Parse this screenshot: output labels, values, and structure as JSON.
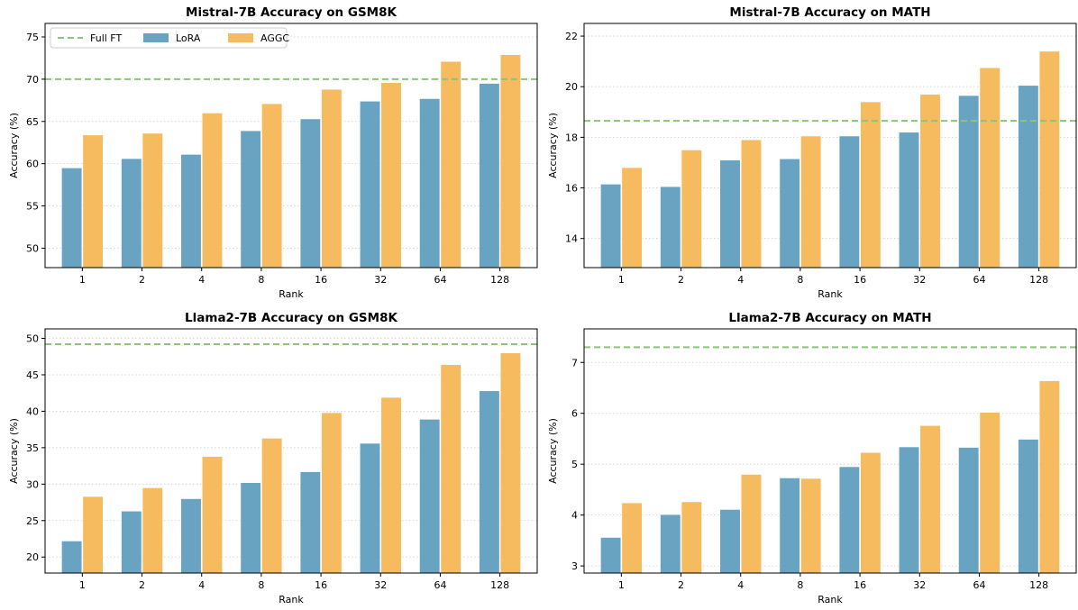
{
  "legend": {
    "items": [
      {
        "label": "Full FT",
        "kind": "dashed-line",
        "color": "#8fc27a"
      },
      {
        "label": "LoRA",
        "kind": "bar",
        "color": "#5b9bbd"
      },
      {
        "label": "AGGC",
        "kind": "bar",
        "color": "#f4b550"
      }
    ],
    "placement": "upper-left of first panel",
    "columns": 3
  },
  "colors": {
    "lora": "#5b9bbd",
    "aggc": "#f4b550",
    "full_ft": "#8fc27a",
    "grid": "#cccccc",
    "axes": "#000000"
  },
  "chart_data": [
    {
      "type": "bar",
      "title": "Mistral-7B Accuracy on GSM8K",
      "xlabel": "Rank",
      "ylabel": "Accuracy (%)",
      "categories": [
        "1",
        "2",
        "4",
        "8",
        "16",
        "32",
        "64",
        "128"
      ],
      "series": [
        {
          "name": "LoRA",
          "values": [
            59.5,
            60.6,
            61.1,
            63.9,
            65.3,
            67.4,
            67.7,
            69.5
          ]
        },
        {
          "name": "AGGC",
          "values": [
            63.4,
            63.6,
            66.0,
            67.1,
            68.8,
            69.6,
            72.1,
            72.9
          ]
        }
      ],
      "reference_lines": [
        {
          "name": "Full FT",
          "value": 70.0
        }
      ],
      "ylim": [
        47.7,
        76.6
      ],
      "yticks": [
        50,
        55,
        60,
        65,
        70,
        75
      ],
      "grid": "y, dotted",
      "show_legend": true
    },
    {
      "type": "bar",
      "title": "Mistral-7B Accuracy on MATH",
      "xlabel": "Rank",
      "ylabel": "Accuracy (%)",
      "categories": [
        "1",
        "2",
        "4",
        "8",
        "16",
        "32",
        "64",
        "128"
      ],
      "series": [
        {
          "name": "LoRA",
          "values": [
            16.15,
            16.05,
            17.1,
            17.15,
            18.05,
            18.2,
            19.65,
            20.05
          ]
        },
        {
          "name": "AGGC",
          "values": [
            16.8,
            17.5,
            17.9,
            18.05,
            19.4,
            19.7,
            20.75,
            21.4
          ]
        }
      ],
      "reference_lines": [
        {
          "name": "Full FT",
          "value": 18.65
        }
      ],
      "ylim": [
        12.85,
        22.5
      ],
      "yticks": [
        14,
        16,
        18,
        20,
        22
      ],
      "grid": "y, dotted",
      "show_legend": false
    },
    {
      "type": "bar",
      "title": "Llama2-7B Accuracy on GSM8K",
      "xlabel": "Rank",
      "ylabel": "Accuracy (%)",
      "categories": [
        "1",
        "2",
        "4",
        "8",
        "16",
        "32",
        "64",
        "128"
      ],
      "series": [
        {
          "name": "LoRA",
          "values": [
            22.2,
            26.3,
            28.0,
            30.2,
            31.7,
            35.6,
            38.9,
            42.8
          ]
        },
        {
          "name": "AGGC",
          "values": [
            28.3,
            29.5,
            33.8,
            36.3,
            39.8,
            41.9,
            46.4,
            48.0
          ]
        }
      ],
      "reference_lines": [
        {
          "name": "Full FT",
          "value": 49.2
        }
      ],
      "ylim": [
        17.8,
        51.3
      ],
      "yticks": [
        20,
        25,
        30,
        35,
        40,
        45,
        50
      ],
      "grid": "y, dotted",
      "show_legend": false
    },
    {
      "type": "bar",
      "title": "Llama2-7B Accuracy on MATH",
      "xlabel": "Rank",
      "ylabel": "Accuracy (%)",
      "categories": [
        "1",
        "2",
        "4",
        "8",
        "16",
        "32",
        "64",
        "128"
      ],
      "series": [
        {
          "name": "LoRA",
          "values": [
            3.56,
            4.01,
            4.11,
            4.73,
            4.95,
            5.34,
            5.33,
            5.49
          ]
        },
        {
          "name": "AGGC",
          "values": [
            4.24,
            4.26,
            4.8,
            4.72,
            5.23,
            5.76,
            6.02,
            6.64
          ]
        }
      ],
      "reference_lines": [
        {
          "name": "Full FT",
          "value": 7.3
        }
      ],
      "ylim": [
        2.86,
        7.66
      ],
      "yticks": [
        3,
        4,
        5,
        6,
        7
      ],
      "grid": "y, dotted",
      "show_legend": false
    }
  ]
}
